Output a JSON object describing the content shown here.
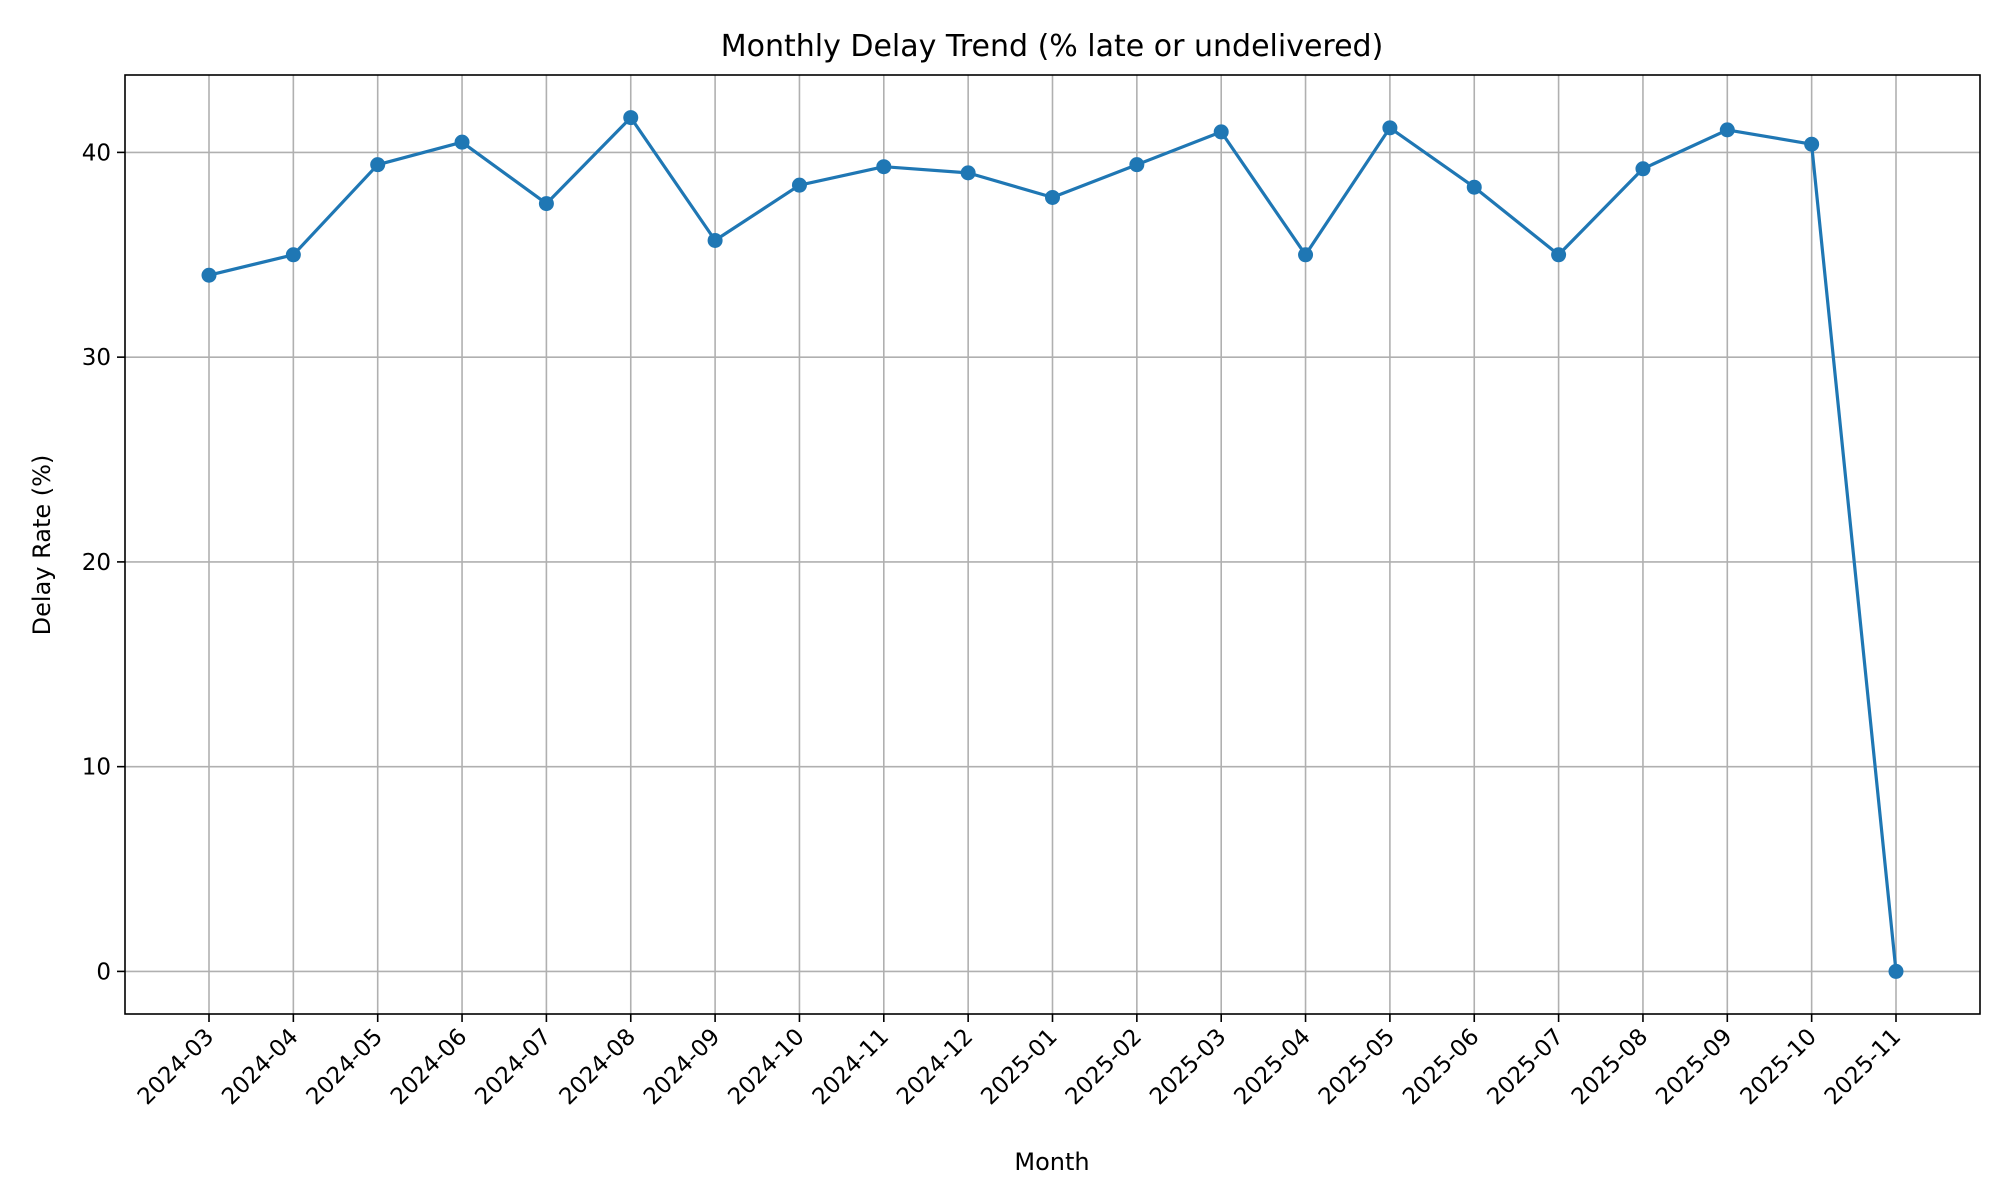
{
  "chart_data": {
    "type": "line",
    "title": "Monthly Delay Trend (% late or undelivered)",
    "xlabel": "Month",
    "ylabel": "Delay Rate (%)",
    "categories": [
      "2024-03",
      "2024-04",
      "2024-05",
      "2024-06",
      "2024-07",
      "2024-08",
      "2024-09",
      "2024-10",
      "2024-11",
      "2024-12",
      "2025-01",
      "2025-02",
      "2025-03",
      "2025-04",
      "2025-05",
      "2025-06",
      "2025-07",
      "2025-08",
      "2025-09",
      "2025-10",
      "2025-11"
    ],
    "series": [
      {
        "values": [
          34.0,
          35.0,
          39.4,
          40.5,
          37.5,
          41.7,
          35.7,
          38.4,
          39.3,
          39.0,
          37.8,
          39.4,
          41.0,
          35.0,
          41.2,
          38.3,
          35.0,
          39.2,
          41.1,
          40.4,
          0.0
        ],
        "color": "#1f77b4",
        "marker": "circle"
      }
    ],
    "yticks": [
      0,
      10,
      20,
      30,
      40
    ],
    "ylim": [
      -2.08,
      43.78
    ],
    "grid": true,
    "legend": "none"
  }
}
